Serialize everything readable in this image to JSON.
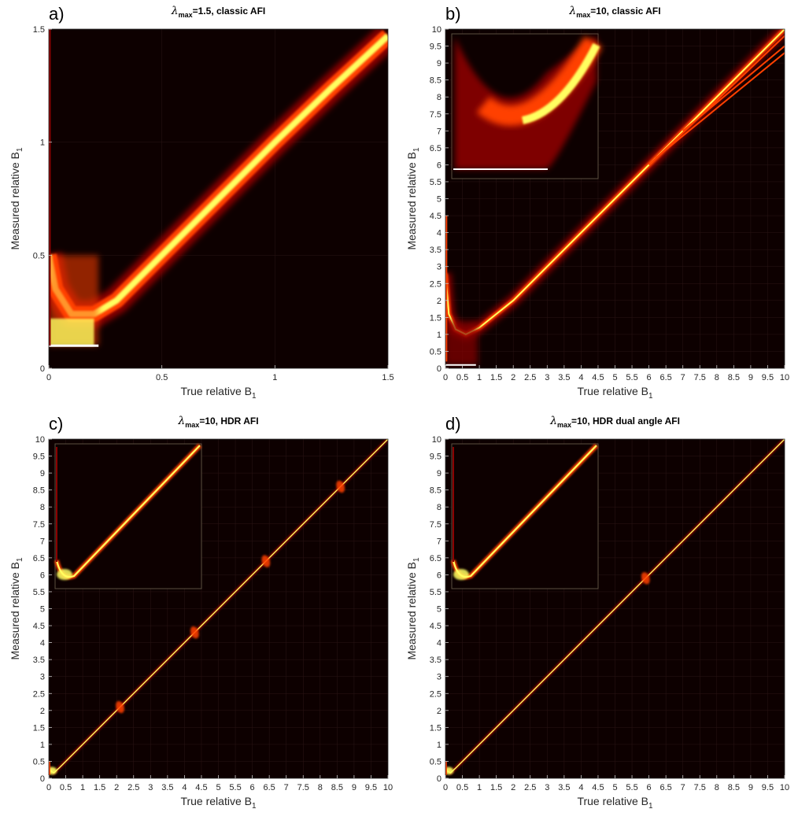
{
  "panels": [
    {
      "letter": "a)",
      "title_symbol": "λ",
      "title_sub": "max",
      "title_rest": "=1.5, classic AFI",
      "xlabel_main": "True relative B",
      "xlabel_sub": "1",
      "ylabel_main": "Measured relative B",
      "ylabel_sub": "1",
      "chart_data": {
        "type": "heatmap",
        "xlim": [
          0,
          1.5
        ],
        "ylim": [
          0,
          1.5
        ],
        "xticks": [
          "0",
          "0.5",
          "1",
          "1.5"
        ],
        "yticks": [
          "0",
          "0.5",
          "1",
          "1.5"
        ],
        "curve": [
          [
            0.0,
            0.5
          ],
          [
            0.03,
            0.35
          ],
          [
            0.1,
            0.24
          ],
          [
            0.2,
            0.24
          ],
          [
            0.3,
            0.3
          ],
          [
            0.5,
            0.5
          ],
          [
            0.75,
            0.75
          ],
          [
            1.0,
            1.0
          ],
          [
            1.25,
            1.24
          ],
          [
            1.5,
            1.47
          ]
        ],
        "floor_value": 0.1,
        "inset": false
      }
    },
    {
      "letter": "b)",
      "title_symbol": "λ",
      "title_sub": "max",
      "title_rest": "=10, classic AFI",
      "xlabel_main": "True relative B",
      "xlabel_sub": "1",
      "ylabel_main": "Measured relative B",
      "ylabel_sub": "1",
      "chart_data": {
        "type": "heatmap",
        "xlim": [
          0,
          10
        ],
        "ylim": [
          0,
          10
        ],
        "xticks": [
          "0",
          "0.5",
          "1",
          "1.5",
          "2",
          "2.5",
          "3",
          "3.5",
          "4",
          "4.5",
          "5",
          "5.5",
          "6",
          "6.5",
          "7",
          "7.5",
          "8",
          "8.5",
          "9",
          "9.5",
          "10"
        ],
        "yticks": [
          "0",
          "0.5",
          "1",
          "1.5",
          "2",
          "2.5",
          "3",
          "3.5",
          "4",
          "4.5",
          "5",
          "5.5",
          "6",
          "6.5",
          "7",
          "7.5",
          "8",
          "8.5",
          "9",
          "9.5",
          "10"
        ],
        "curve": [
          [
            0.0,
            2.8
          ],
          [
            0.1,
            1.6
          ],
          [
            0.3,
            1.15
          ],
          [
            0.6,
            1.0
          ],
          [
            1.0,
            1.2
          ],
          [
            2.0,
            2.0
          ],
          [
            4.0,
            4.0
          ],
          [
            6.0,
            6.0
          ],
          [
            8.0,
            8.0
          ],
          [
            10.0,
            10.0
          ]
        ],
        "branches": [
          [
            [
              6.0,
              6.0
            ],
            [
              10.0,
              9.8
            ]
          ],
          [
            [
              6.2,
              6.2
            ],
            [
              10.0,
              9.3
            ]
          ],
          [
            [
              7.0,
              7.0
            ],
            [
              10.0,
              9.5
            ]
          ]
        ],
        "floor_value": 0.1,
        "inset": true
      }
    },
    {
      "letter": "c)",
      "title_symbol": "λ",
      "title_sub": "max",
      "title_rest": "=10, HDR AFI",
      "xlabel_main": "True relative B",
      "xlabel_sub": "1",
      "ylabel_main": "Measured relative B",
      "ylabel_sub": "1",
      "chart_data": {
        "type": "heatmap",
        "xlim": [
          0,
          10
        ],
        "ylim": [
          0,
          10
        ],
        "xticks": [
          "0",
          "0.5",
          "1",
          "1.5",
          "2",
          "2.5",
          "3",
          "3.5",
          "4",
          "4.5",
          "5",
          "5.5",
          "6",
          "6.5",
          "7",
          "7.5",
          "8",
          "8.5",
          "9",
          "9.5",
          "10"
        ],
        "yticks": [
          "0",
          "0.5",
          "1",
          "1.5",
          "2",
          "2.5",
          "3",
          "3.5",
          "4",
          "4.5",
          "5",
          "5.5",
          "6",
          "6.5",
          "7",
          "7.5",
          "8",
          "8.5",
          "9",
          "9.5",
          "10"
        ],
        "curve": [
          [
            0.0,
            0.35
          ],
          [
            0.05,
            0.22
          ],
          [
            0.15,
            0.16
          ],
          [
            0.3,
            0.3
          ],
          [
            10.0,
            10.0
          ]
        ],
        "blobs": [
          [
            2.1,
            2.1
          ],
          [
            4.3,
            4.3
          ],
          [
            6.4,
            6.4
          ],
          [
            8.6,
            8.6
          ]
        ],
        "inset": true
      }
    },
    {
      "letter": "d)",
      "title_symbol": "λ",
      "title_sub": "max",
      "title_rest": "=10, HDR dual angle AFI",
      "xlabel_main": "True relative B",
      "xlabel_sub": "1",
      "ylabel_main": "Measured relative B",
      "ylabel_sub": "1",
      "chart_data": {
        "type": "heatmap",
        "xlim": [
          0,
          10
        ],
        "ylim": [
          0,
          10
        ],
        "xticks": [
          "0",
          "0.5",
          "1",
          "1.5",
          "2",
          "2.5",
          "3",
          "3.5",
          "4",
          "4.5",
          "5",
          "5.5",
          "6",
          "6.5",
          "7",
          "7.5",
          "8",
          "8.5",
          "9",
          "9.5",
          "10"
        ],
        "yticks": [
          "0",
          "0.5",
          "1",
          "1.5",
          "2",
          "2.5",
          "3",
          "3.5",
          "4",
          "4.5",
          "5",
          "5.5",
          "6",
          "6.5",
          "7",
          "7.5",
          "8",
          "8.5",
          "9",
          "9.5",
          "10"
        ],
        "curve": [
          [
            0.0,
            0.35
          ],
          [
            0.05,
            0.22
          ],
          [
            0.15,
            0.16
          ],
          [
            0.3,
            0.3
          ],
          [
            10.0,
            10.0
          ]
        ],
        "blobs": [
          [
            5.9,
            5.9
          ]
        ],
        "inset": true
      }
    }
  ],
  "colors": {
    "background": "#0d0000",
    "hot_low": "#8b0000",
    "hot_mid": "#ff4000",
    "hot_high": "#ffff60",
    "white": "#ffffff"
  }
}
